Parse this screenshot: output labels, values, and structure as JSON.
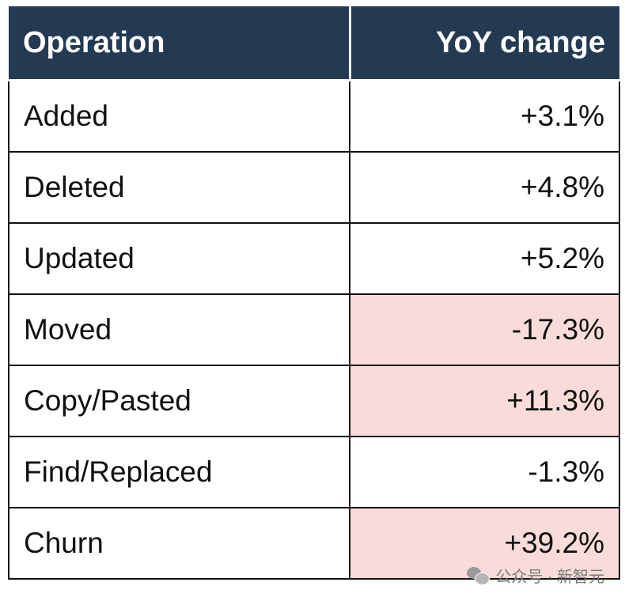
{
  "chart_data": {
    "type": "table",
    "columns": [
      "Operation",
      "YoY change"
    ],
    "rows": [
      {
        "operation": "Added",
        "yoy": "+3.1%",
        "value": 3.1,
        "highlight": false
      },
      {
        "operation": "Deleted",
        "yoy": "+4.8%",
        "value": 4.8,
        "highlight": false
      },
      {
        "operation": "Updated",
        "yoy": "+5.2%",
        "value": 5.2,
        "highlight": false
      },
      {
        "operation": "Moved",
        "yoy": "-17.3%",
        "value": -17.3,
        "highlight": true
      },
      {
        "operation": "Copy/Pasted",
        "yoy": "+11.3%",
        "value": 11.3,
        "highlight": true
      },
      {
        "operation": "Find/Replaced",
        "yoy": "-1.3%",
        "value": -1.3,
        "highlight": false
      },
      {
        "operation": "Churn",
        "yoy": "+39.2%",
        "value": 39.2,
        "highlight": true
      }
    ],
    "colors": {
      "header_bg": "#233a52",
      "header_text": "#ffffff",
      "highlight_bg": "#f9dcd9"
    }
  },
  "watermark": {
    "text": "公众号 · 新智元",
    "icon": "wechat-icon"
  }
}
